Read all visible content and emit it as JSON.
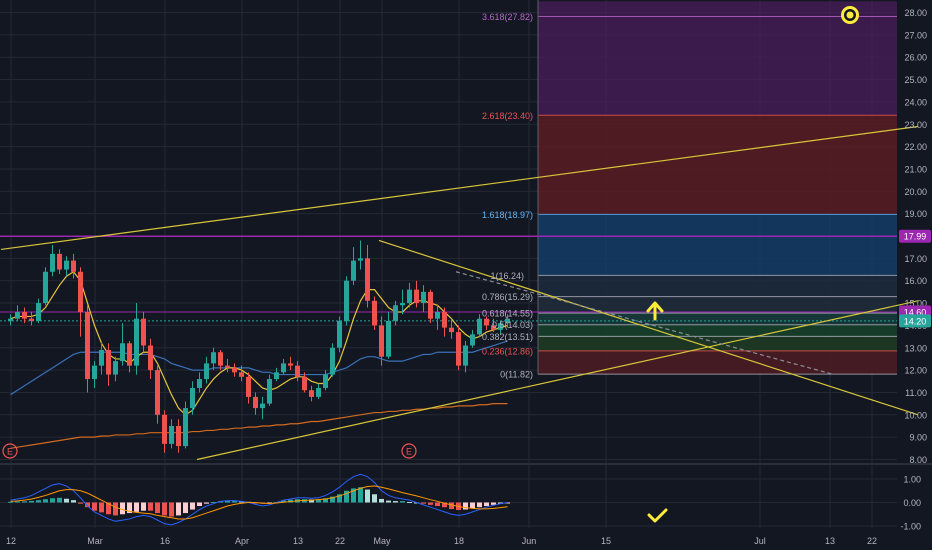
{
  "colors": {
    "background": "#131722",
    "grid": "#242836",
    "up": "#26a69a",
    "down": "#ef5350",
    "axis_text": "#b2b5be",
    "ma_fast": "#e5c43c",
    "ma_mid": "#3a71b8",
    "ma_slow": "#d2691e",
    "trendline": "#d7c63a",
    "fib_purple": "#9c27b0",
    "fib_red": "#b71c1c",
    "fib_blue": "#1e5fb4",
    "fib_green": "#1b5e20",
    "macd_line": "#2962ff",
    "signal_line": "#ff9800",
    "accent_yellow": "#ffeb3b"
  },
  "chart_data": [
    {
      "type": "candlestick",
      "title": "",
      "ylim": [
        8,
        28.5
      ],
      "y_ticks": [
        "8.00",
        "9.00",
        "10.00",
        "11.00",
        "12.00",
        "13.00",
        "14.00",
        "15.00",
        "16.00",
        "17.00",
        "18.00",
        "19.00",
        "20.00",
        "21.00",
        "22.00",
        "23.00",
        "24.00",
        "25.00",
        "26.00",
        "27.00",
        "28.00"
      ],
      "x_ticks": [
        {
          "label": "12",
          "bar": 0
        },
        {
          "label": "Mar",
          "bar": 12
        },
        {
          "label": "16",
          "bar": 22
        },
        {
          "label": "Apr",
          "bar": 33
        },
        {
          "label": "13",
          "bar": 41
        },
        {
          "label": "22",
          "bar": 47
        },
        {
          "label": "May",
          "bar": 53
        },
        {
          "label": "18",
          "bar": 64
        },
        {
          "label": "Jun",
          "bar": 74
        },
        {
          "label": "15",
          "bar": 85
        },
        {
          "label": "Jul",
          "bar": 107
        },
        {
          "label": "13",
          "bar": 117
        },
        {
          "label": "22",
          "bar": 123
        }
      ],
      "total_slots": 127,
      "candles": [
        [
          14.2,
          14.5,
          14.0,
          14.3
        ],
        [
          14.3,
          14.9,
          14.2,
          14.6
        ],
        [
          14.6,
          14.8,
          14.1,
          14.3
        ],
        [
          14.3,
          14.6,
          14.0,
          14.2
        ],
        [
          14.2,
          15.2,
          14.1,
          15.0
        ],
        [
          15.0,
          16.6,
          14.9,
          16.4
        ],
        [
          16.4,
          17.6,
          16.2,
          17.2
        ],
        [
          17.2,
          17.4,
          16.3,
          16.5
        ],
        [
          16.5,
          17.1,
          16.2,
          16.9
        ],
        [
          16.9,
          17.2,
          16.1,
          16.4
        ],
        [
          16.4,
          16.6,
          13.5,
          14.6
        ],
        [
          14.6,
          14.9,
          11.0,
          11.6
        ],
        [
          11.6,
          12.4,
          11.2,
          12.2
        ],
        [
          12.2,
          13.3,
          11.8,
          12.9
        ],
        [
          12.9,
          13.2,
          11.3,
          11.8
        ],
        [
          11.8,
          12.6,
          11.5,
          12.4
        ],
        [
          12.4,
          14.1,
          12.2,
          13.2
        ],
        [
          13.2,
          13.3,
          11.9,
          12.2
        ],
        [
          12.2,
          15.0,
          11.8,
          14.3
        ],
        [
          14.3,
          14.6,
          12.8,
          13.1
        ],
        [
          13.1,
          13.4,
          11.6,
          12.0
        ],
        [
          12.0,
          12.2,
          9.6,
          10.0
        ],
        [
          10.0,
          10.2,
          8.3,
          8.7
        ],
        [
          8.7,
          9.8,
          8.5,
          9.5
        ],
        [
          9.5,
          9.8,
          8.3,
          8.6
        ],
        [
          8.6,
          10.6,
          8.5,
          10.3
        ],
        [
          10.3,
          11.5,
          10.0,
          11.2
        ],
        [
          11.2,
          11.9,
          11.0,
          11.6
        ],
        [
          11.6,
          12.6,
          11.4,
          12.3
        ],
        [
          12.3,
          13.0,
          12.0,
          12.8
        ],
        [
          12.8,
          12.9,
          12.0,
          12.2
        ],
        [
          12.2,
          12.5,
          11.9,
          12.1
        ],
        [
          12.1,
          12.3,
          11.7,
          11.9
        ],
        [
          11.9,
          12.2,
          11.5,
          11.7
        ],
        [
          11.7,
          11.9,
          10.5,
          10.8
        ],
        [
          10.8,
          11.0,
          10.0,
          10.3
        ],
        [
          10.3,
          10.8,
          9.8,
          10.5
        ],
        [
          10.5,
          11.8,
          10.4,
          11.6
        ],
        [
          11.6,
          12.1,
          11.5,
          11.9
        ],
        [
          11.9,
          12.5,
          11.8,
          12.3
        ],
        [
          12.3,
          12.6,
          12.0,
          12.2
        ],
        [
          12.2,
          12.4,
          11.5,
          11.7
        ],
        [
          11.7,
          11.9,
          11.0,
          11.1
        ],
        [
          11.1,
          11.3,
          10.6,
          10.8
        ],
        [
          10.8,
          11.4,
          10.7,
          11.2
        ],
        [
          11.2,
          12.0,
          11.1,
          11.8
        ],
        [
          11.8,
          13.2,
          11.7,
          13.0
        ],
        [
          13.0,
          14.4,
          12.8,
          14.2
        ],
        [
          14.2,
          16.2,
          14.0,
          16.0
        ],
        [
          16.0,
          17.5,
          15.8,
          16.9
        ],
        [
          16.9,
          17.8,
          16.5,
          17.0
        ],
        [
          17.0,
          17.6,
          14.8,
          15.1
        ],
        [
          15.1,
          15.3,
          13.8,
          14.0
        ],
        [
          14.0,
          14.4,
          12.2,
          12.6
        ],
        [
          12.6,
          14.6,
          12.5,
          14.2
        ],
        [
          14.2,
          15.1,
          14.0,
          14.9
        ],
        [
          14.9,
          15.6,
          14.5,
          15.0
        ],
        [
          15.0,
          15.9,
          14.8,
          15.6
        ],
        [
          15.6,
          16.0,
          14.8,
          15.0
        ],
        [
          15.0,
          15.8,
          14.6,
          15.5
        ],
        [
          15.5,
          15.6,
          14.1,
          14.3
        ],
        [
          14.3,
          14.9,
          13.8,
          14.6
        ],
        [
          14.6,
          14.8,
          13.5,
          13.9
        ],
        [
          13.9,
          14.3,
          13.4,
          13.7
        ],
        [
          13.7,
          14.0,
          12.0,
          12.2
        ],
        [
          12.2,
          13.3,
          11.9,
          13.1
        ],
        [
          13.1,
          13.8,
          13.0,
          13.6
        ],
        [
          13.6,
          14.5,
          13.5,
          14.3
        ],
        [
          14.3,
          14.4,
          13.8,
          14.0
        ],
        [
          14.0,
          14.3,
          13.7,
          13.8
        ],
        [
          13.8,
          14.2,
          13.6,
          14.1
        ],
        [
          14.1,
          14.5,
          13.9,
          14.3
        ]
      ],
      "ma_fast": [
        14.3,
        14.4,
        14.4,
        14.4,
        14.5,
        14.8,
        15.3,
        15.8,
        16.2,
        16.4,
        16.0,
        15.0,
        14.0,
        13.2,
        12.7,
        12.5,
        12.5,
        12.3,
        12.6,
        12.8,
        12.8,
        12.3,
        11.6,
        10.9,
        10.3,
        10.0,
        10.2,
        10.7,
        11.2,
        11.6,
        11.9,
        12.1,
        12.1,
        12.0,
        11.8,
        11.5,
        11.2,
        11.1,
        11.2,
        11.4,
        11.6,
        11.7,
        11.7,
        11.5,
        11.4,
        11.4,
        11.8,
        12.4,
        13.3,
        14.3,
        15.1,
        15.6,
        15.6,
        15.2,
        14.8,
        14.6,
        14.6,
        14.9,
        15.1,
        15.1,
        15.0,
        14.9,
        14.6,
        14.3,
        13.9,
        13.6,
        13.4,
        13.5,
        13.7,
        13.8,
        13.9,
        14.0
      ],
      "ma_mid": [
        10.9,
        11.1,
        11.3,
        11.5,
        11.7,
        11.9,
        12.1,
        12.3,
        12.5,
        12.7,
        12.8,
        12.8,
        12.8,
        12.8,
        12.8,
        12.8,
        12.8,
        12.7,
        12.7,
        12.7,
        12.7,
        12.6,
        12.5,
        12.3,
        12.2,
        12.1,
        12.0,
        12.0,
        12.0,
        12.1,
        12.1,
        12.1,
        12.1,
        12.1,
        12.1,
        12.0,
        11.9,
        11.9,
        11.8,
        11.8,
        11.8,
        11.8,
        11.8,
        11.8,
        11.8,
        11.8,
        11.9,
        12.0,
        12.1,
        12.3,
        12.5,
        12.6,
        12.6,
        12.5,
        12.4,
        12.4,
        12.4,
        12.5,
        12.6,
        12.7,
        12.7,
        12.8,
        12.8,
        12.8,
        12.8,
        12.8,
        12.8,
        12.9,
        13.0,
        13.1,
        13.2,
        13.3
      ],
      "ma_slow": [
        8.5,
        8.55,
        8.6,
        8.65,
        8.7,
        8.75,
        8.8,
        8.85,
        8.9,
        8.95,
        9.0,
        9.0,
        9.0,
        9.05,
        9.05,
        9.1,
        9.1,
        9.1,
        9.15,
        9.15,
        9.2,
        9.2,
        9.2,
        9.2,
        9.2,
        9.2,
        9.25,
        9.25,
        9.3,
        9.3,
        9.35,
        9.35,
        9.4,
        9.4,
        9.45,
        9.45,
        9.5,
        9.5,
        9.55,
        9.55,
        9.6,
        9.6,
        9.65,
        9.7,
        9.7,
        9.75,
        9.8,
        9.85,
        9.9,
        9.95,
        10.0,
        10.05,
        10.1,
        10.1,
        10.15,
        10.15,
        10.2,
        10.2,
        10.25,
        10.25,
        10.3,
        10.3,
        10.35,
        10.35,
        10.4,
        10.4,
        10.4,
        10.45,
        10.45,
        10.5,
        10.5,
        10.5
      ],
      "fib_levels": [
        {
          "ratio": 0,
          "price": 11.82,
          "label": "0(11.82)",
          "color": "#b0b3bd"
        },
        {
          "ratio": 0.236,
          "price": 12.86,
          "label": "0.236(12.86)",
          "color": "#ef5350"
        },
        {
          "ratio": 0.382,
          "price": 13.51,
          "label": "0.382(13.51)",
          "color": "#b0b3bd"
        },
        {
          "ratio": 0.5,
          "price": 14.03,
          "label": "0.5(14.03)",
          "color": "#b0b3bd"
        },
        {
          "ratio": 0.618,
          "price": 14.55,
          "label": "0.618(14.55)",
          "color": "#b0b3bd"
        },
        {
          "ratio": 0.786,
          "price": 15.29,
          "label": "0.786(15.29)",
          "color": "#b0b3bd"
        },
        {
          "ratio": 1,
          "price": 16.24,
          "label": "1(16.24)",
          "color": "#b0b3bd"
        },
        {
          "ratio": 1.618,
          "price": 18.97,
          "label": "1.618(18.97)",
          "color": "#64b5f6"
        },
        {
          "ratio": 2.618,
          "price": 23.4,
          "label": "2.618(23.40)",
          "color": "#ef5350"
        },
        {
          "ratio": 3.618,
          "price": 27.82,
          "label": "3.618(27.82)",
          "color": "#ba68c8"
        }
      ],
      "horizontal_lines": [
        {
          "price": 17.99,
          "label": "17.99",
          "color": "#9c27b0"
        },
        {
          "price": 14.6,
          "label": "14.60",
          "color": "#9c27b0"
        },
        {
          "price": 14.2,
          "label": "14.20",
          "color": "#26a69a"
        }
      ],
      "earnings_markers": [
        {
          "bar": 0,
          "label": "E"
        },
        {
          "bar": 57,
          "label": "E"
        }
      ],
      "channel_upper": [
        [
          -1,
          17.4
        ],
        [
          130,
          22.9
        ]
      ],
      "channel_lower": [
        [
          27,
          8.0
        ],
        [
          130,
          15.1
        ]
      ],
      "descending_line": [
        [
          53,
          17.8
        ],
        [
          130,
          10.0
        ]
      ],
      "dashed_line": [
        [
          64,
          16.4
        ],
        [
          118,
          11.8
        ]
      ]
    },
    {
      "type": "macd",
      "ylim": [
        -1.45,
        1.35
      ],
      "y_ticks": [
        "1.00",
        "0.00",
        "-1.00"
      ],
      "histogram": [
        0.03,
        0.04,
        0.05,
        0.07,
        0.1,
        0.14,
        0.18,
        0.2,
        0.16,
        0.1,
        -0.05,
        -0.2,
        -0.35,
        -0.42,
        -0.5,
        -0.55,
        -0.5,
        -0.45,
        -0.4,
        -0.35,
        -0.35,
        -0.45,
        -0.55,
        -0.6,
        -0.55,
        -0.45,
        -0.3,
        -0.15,
        -0.05,
        0.02,
        0.06,
        0.08,
        0.08,
        0.06,
        0.03,
        -0.02,
        -0.05,
        -0.03,
        0.02,
        0.08,
        0.12,
        0.14,
        0.14,
        0.13,
        0.14,
        0.18,
        0.25,
        0.35,
        0.5,
        0.6,
        0.65,
        0.55,
        0.35,
        0.15,
        0.08,
        0.06,
        0.06,
        0.02,
        0.0,
        -0.05,
        -0.1,
        -0.15,
        -0.2,
        -0.28,
        -0.32,
        -0.3,
        -0.25,
        -0.2,
        -0.15,
        -0.1,
        -0.06,
        -0.04
      ],
      "macd": [
        0.1,
        0.15,
        0.2,
        0.3,
        0.45,
        0.6,
        0.75,
        0.8,
        0.7,
        0.5,
        0.2,
        -0.15,
        -0.4,
        -0.55,
        -0.7,
        -0.8,
        -0.75,
        -0.7,
        -0.6,
        -0.55,
        -0.6,
        -0.75,
        -0.9,
        -0.95,
        -0.85,
        -0.7,
        -0.5,
        -0.3,
        -0.15,
        -0.05,
        0.05,
        0.08,
        0.08,
        0.05,
        0.0,
        -0.08,
        -0.15,
        -0.1,
        0.0,
        0.1,
        0.15,
        0.2,
        0.2,
        0.18,
        0.2,
        0.3,
        0.45,
        0.65,
        0.9,
        1.1,
        1.2,
        1.1,
        0.85,
        0.5,
        0.3,
        0.2,
        0.15,
        0.1,
        0.0,
        -0.1,
        -0.2,
        -0.3,
        -0.4,
        -0.5,
        -0.55,
        -0.5,
        -0.4,
        -0.3,
        -0.2,
        -0.12,
        -0.05,
        0.0
      ],
      "signal": [
        0.05,
        0.07,
        0.1,
        0.15,
        0.22,
        0.3,
        0.4,
        0.5,
        0.55,
        0.55,
        0.5,
        0.4,
        0.25,
        0.1,
        -0.05,
        -0.2,
        -0.3,
        -0.38,
        -0.42,
        -0.45,
        -0.48,
        -0.55,
        -0.6,
        -0.65,
        -0.7,
        -0.7,
        -0.65,
        -0.55,
        -0.45,
        -0.35,
        -0.25,
        -0.15,
        -0.08,
        -0.03,
        0.0,
        0.0,
        -0.03,
        -0.04,
        -0.02,
        0.01,
        0.04,
        0.07,
        0.09,
        0.1,
        0.12,
        0.15,
        0.2,
        0.28,
        0.38,
        0.5,
        0.6,
        0.68,
        0.7,
        0.65,
        0.58,
        0.5,
        0.42,
        0.35,
        0.28,
        0.2,
        0.12,
        0.05,
        -0.03,
        -0.1,
        -0.17,
        -0.22,
        -0.25,
        -0.27,
        -0.27,
        -0.25,
        -0.22,
        -0.18
      ]
    }
  ]
}
